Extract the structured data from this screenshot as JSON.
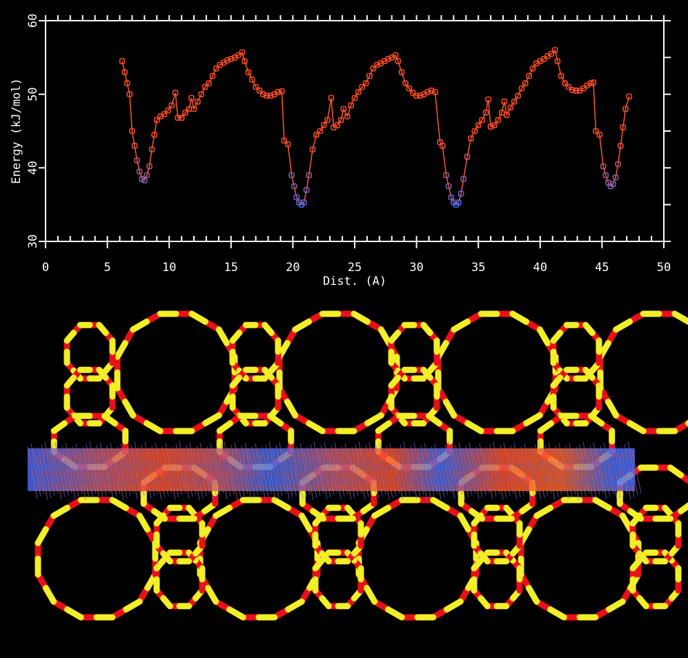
{
  "chart_data": {
    "type": "line",
    "xlabel": "Dist. (A)",
    "ylabel": "Energy (kJ/mol)",
    "xlim": [
      0,
      50
    ],
    "xticks": [
      0,
      5,
      10,
      15,
      20,
      25,
      30,
      35,
      40,
      45,
      50
    ],
    "xminor_step": 1,
    "ylim": [
      30,
      60
    ],
    "yticks": [
      30,
      40,
      50,
      60
    ],
    "yminor_step": 5,
    "color": "#ff5a2a",
    "marker_low_color": "#3c6cff",
    "marker_high_color": "#ff4a22",
    "series": [
      {
        "name": null,
        "x": [
          6.2,
          6.4,
          6.6,
          6.8,
          7.0,
          7.2,
          7.4,
          7.6,
          7.8,
          8.0,
          8.2,
          8.4,
          8.6,
          8.8,
          9.0,
          9.3,
          9.6,
          9.9,
          10.2,
          10.5,
          10.7,
          11.0,
          11.3,
          11.6,
          11.8,
          12.0,
          12.3,
          12.6,
          12.9,
          13.2,
          13.5,
          13.8,
          14.1,
          14.4,
          14.7,
          15.0,
          15.3,
          15.6,
          15.9,
          16.1,
          16.4,
          16.7,
          17.0,
          17.3,
          17.6,
          17.9,
          18.2,
          18.5,
          18.8,
          19.1,
          19.3,
          19.6,
          19.9,
          20.1,
          20.3,
          20.5,
          20.7,
          20.9,
          21.1,
          21.3,
          21.6,
          21.9,
          22.2,
          22.5,
          22.8,
          23.1,
          23.3,
          23.6,
          23.9,
          24.1,
          24.4,
          24.7,
          25.0,
          25.3,
          25.6,
          25.9,
          26.2,
          26.5,
          26.8,
          27.1,
          27.4,
          27.7,
          28.0,
          28.3,
          28.5,
          28.8,
          29.1,
          29.4,
          29.7,
          30.0,
          30.3,
          30.6,
          30.9,
          31.2,
          31.5,
          31.9,
          32.1,
          32.4,
          32.6,
          32.8,
          33.0,
          33.2,
          33.4,
          33.6,
          33.8,
          34.1,
          34.4,
          34.7,
          35.0,
          35.3,
          35.6,
          35.8,
          36.0,
          36.3,
          36.6,
          36.9,
          37.1,
          37.3,
          37.6,
          37.9,
          38.2,
          38.5,
          38.8,
          39.1,
          39.4,
          39.7,
          40.0,
          40.3,
          40.6,
          40.9,
          41.2,
          41.4,
          41.7,
          42.0,
          42.3,
          42.6,
          42.9,
          43.2,
          43.5,
          43.8,
          44.1,
          44.3,
          44.5,
          44.8,
          45.1,
          45.3,
          45.5,
          45.7,
          45.9,
          46.1,
          46.3,
          46.5,
          46.7,
          46.9,
          47.2
        ],
        "values": [
          54.5,
          53,
          51.5,
          50,
          45,
          43,
          41,
          39.5,
          38.5,
          38.3,
          39,
          40.2,
          42.5,
          44.5,
          46.5,
          47,
          47.3,
          47.8,
          48.5,
          50.2,
          46.8,
          46.8,
          47.5,
          48,
          49.5,
          48,
          49,
          50,
          51,
          51.5,
          52.5,
          53.5,
          54,
          54.3,
          54.6,
          54.8,
          55,
          55.3,
          55.7,
          54.5,
          53,
          52,
          51,
          50.5,
          50,
          49.8,
          49.8,
          50,
          50.3,
          50.4,
          43.7,
          43.2,
          39,
          37.5,
          36,
          35.3,
          35,
          35.3,
          37,
          39,
          42.5,
          44.5,
          45,
          45.8,
          46.5,
          49.5,
          45.5,
          45.8,
          46.5,
          48,
          47,
          48.5,
          49.5,
          50.3,
          51,
          51.5,
          52.5,
          53.5,
          54,
          54.2,
          54.5,
          54.8,
          55,
          55.3,
          54.5,
          53,
          51.5,
          50.8,
          50.2,
          49.8,
          49.8,
          50,
          50.3,
          50.5,
          50.3,
          43.5,
          43,
          39,
          37.5,
          36,
          35.3,
          35,
          35.3,
          36.5,
          38.5,
          41.5,
          44,
          45,
          45.8,
          46.5,
          47.5,
          49.3,
          45.6,
          45.8,
          46.5,
          47.5,
          49,
          47.2,
          48.2,
          49,
          49.8,
          50.8,
          51.5,
          52.5,
          53.5,
          54.2,
          54.5,
          54.8,
          55.2,
          55.5,
          56,
          54.5,
          52.5,
          51.5,
          51,
          50.6,
          50.5,
          50.5,
          50.8,
          51.2,
          51.5,
          51.6,
          45,
          44.5,
          40.2,
          39,
          38,
          37.5,
          37.8,
          38.7,
          40.5,
          43,
          45.5,
          48,
          49.7
        ]
      }
    ]
  }
}
